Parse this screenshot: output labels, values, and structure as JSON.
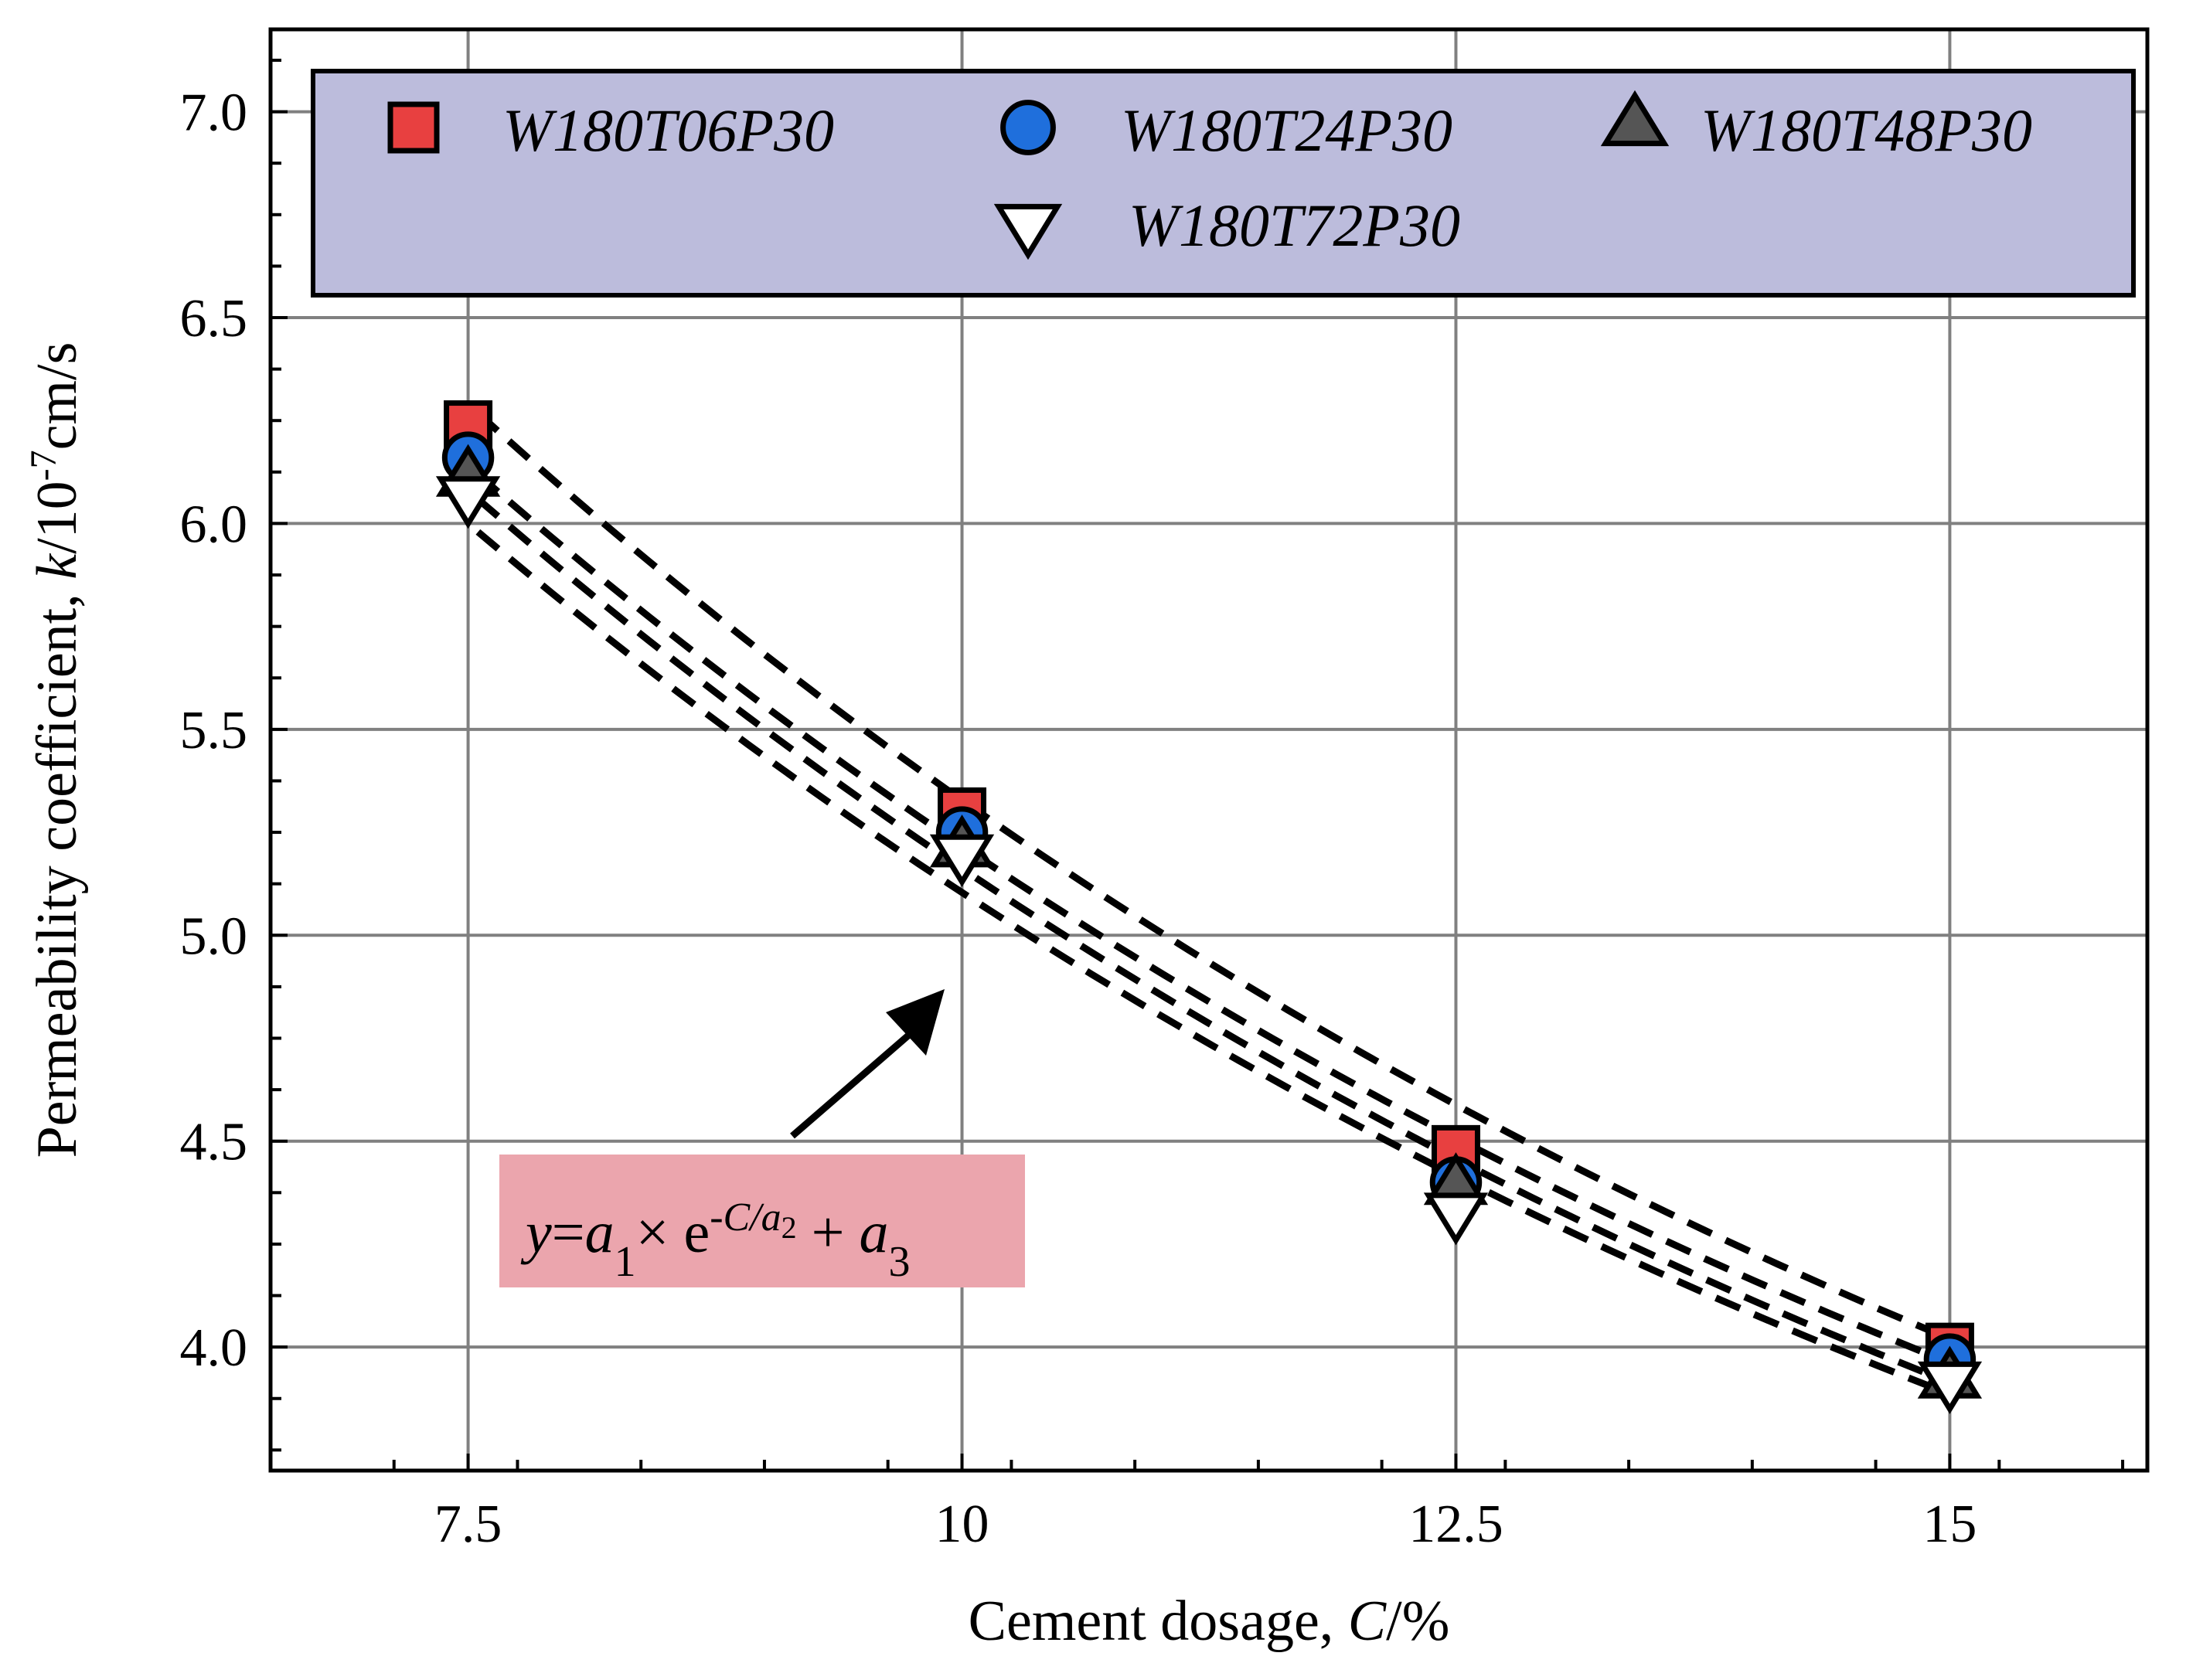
{
  "chart_data": {
    "type": "scatter",
    "xlabel": "Cement dosage, ",
    "xlabel_var": "C",
    "xlabel_unit": "/%",
    "ylabel": "Permeability coefficient, ",
    "ylabel_var": "k",
    "ylabel_unit": "/10",
    "ylabel_exp": "-7",
    "ylabel_unit2": "cm/s",
    "xlim": [
      6.5,
      16
    ],
    "ylim": [
      3.7,
      7.2
    ],
    "x_ticks": [
      7.5,
      10,
      12.5,
      15
    ],
    "x_tick_labels": [
      "7.5",
      "10",
      "12.5",
      "15"
    ],
    "y_ticks": [
      4.0,
      4.5,
      5.0,
      5.5,
      6.0,
      6.5,
      7.0
    ],
    "y_tick_labels": [
      "4.0",
      "4.5",
      "5.0",
      "5.5",
      "6.0",
      "6.5",
      "7.0"
    ],
    "grid": true,
    "legend_position": "top",
    "x": [
      7.5,
      10,
      12.5,
      15
    ],
    "series": [
      {
        "name": "W180T06P30",
        "marker": "square",
        "color": "#e84040",
        "values": [
          6.24,
          5.3,
          4.48,
          4.0
        ],
        "fit_offset": 0.05
      },
      {
        "name": "W180T24P30",
        "marker": "circle",
        "color": "#1f6fdc",
        "values": [
          6.16,
          5.25,
          4.4,
          3.97
        ],
        "fit_offset": -0.02
      },
      {
        "name": "W180T48P30",
        "marker": "triangle-up",
        "color": "#555555",
        "values": [
          6.12,
          5.22,
          4.4,
          3.93
        ],
        "fit_offset": -0.04
      },
      {
        "name": "W180T72P30",
        "marker": "triangle-down",
        "color": "#ffffff",
        "values": [
          6.06,
          5.19,
          4.32,
          3.91
        ],
        "fit_offset": -0.06
      }
    ],
    "equation": {
      "text": "y=a1× e-C/a2 + a3",
      "background": "#eba5ad"
    }
  },
  "colors": {
    "legend_background": "#bcbcdc",
    "grid": "#808080",
    "axis": "#000000"
  }
}
